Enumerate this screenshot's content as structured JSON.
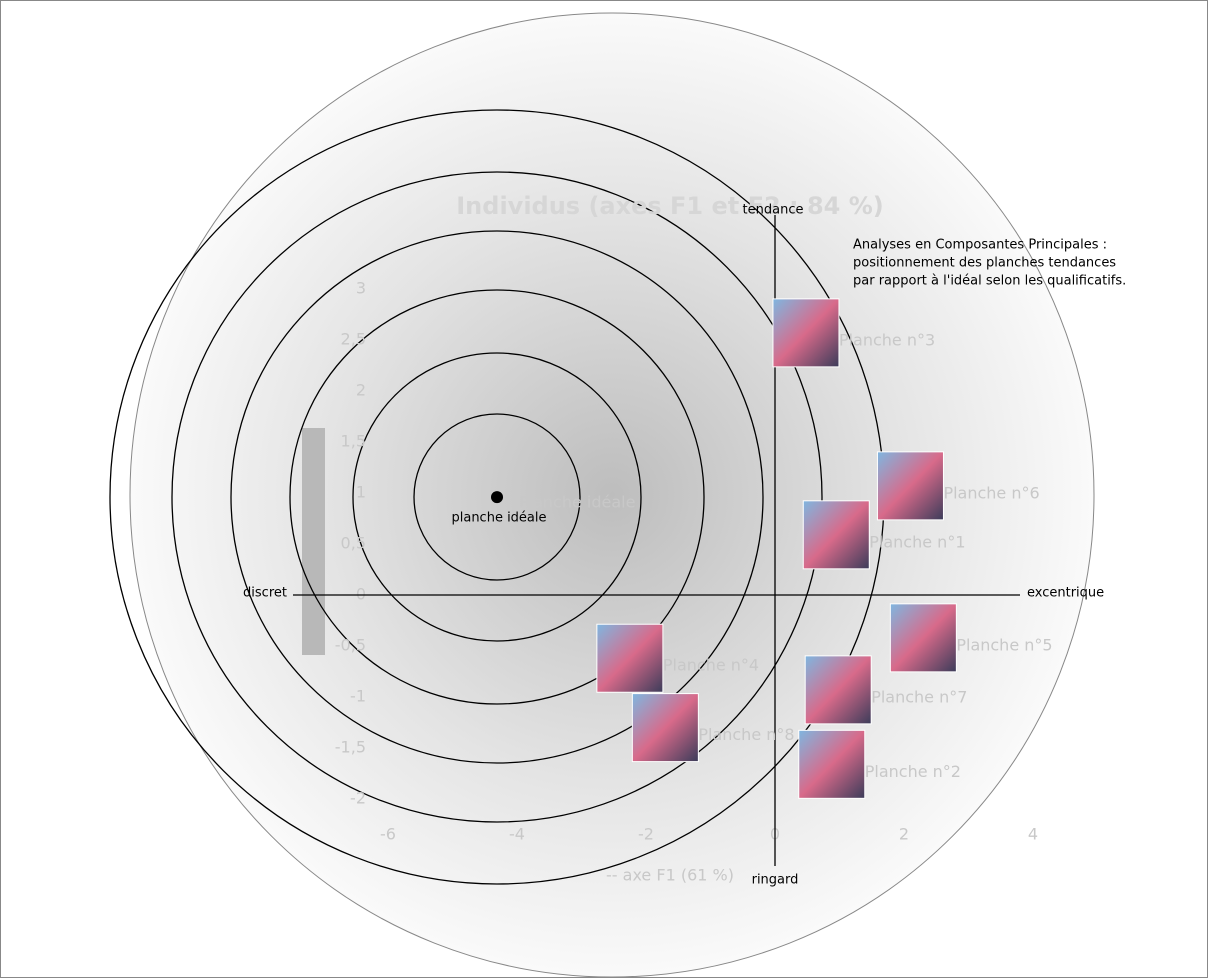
{
  "chart_data": {
    "type": "scatter",
    "title": "Individus (axes F1 et F2 : 84 %)",
    "x_label": "-- axe F1 (61 %)",
    "labels": [
      "Planche idéale",
      "Planche n°3",
      "Planche n°6",
      "Planche n°1",
      "Planche n°5",
      "Planche n°4",
      "Planche n°7",
      "Planche n°8",
      "Planche n°2"
    ],
    "x": [
      -4.31,
      0.48,
      2.1,
      0.95,
      2.3,
      -2.25,
      0.98,
      -1.7,
      0.88
    ],
    "values": [
      0.96,
      2.57,
      1.07,
      0.59,
      -0.42,
      -0.62,
      -0.93,
      -1.3,
      -1.66
    ],
    "xlim": [
      -7,
      5
    ],
    "ylim": [
      -2.5,
      3.5
    ],
    "xticks": [
      -6,
      -4,
      -2,
      0,
      2,
      4
    ],
    "yticks": [
      {
        "value": -2,
        "label": "-2"
      },
      {
        "value": -1.5,
        "label": "-1,5"
      },
      {
        "value": -1,
        "label": "-1"
      },
      {
        "value": -0.5,
        "label": "-0,5"
      },
      0,
      {
        "value": 0.5,
        "label": "0,5"
      },
      1,
      {
        "value": 1.5,
        "label": "1,5"
      },
      2,
      {
        "value": 2.5,
        "label": "2,5"
      },
      3
    ],
    "annotations": {
      "top": "tendance",
      "bottom": "ringard",
      "left": "discret",
      "right": "excentrique",
      "ideal": "planche idéale",
      "description": [
        "Analyses en Composantes Principales :",
        "positionnement des planches tendances",
        "par rapport à l'idéal selon les qualificatifs."
      ]
    }
  }
}
